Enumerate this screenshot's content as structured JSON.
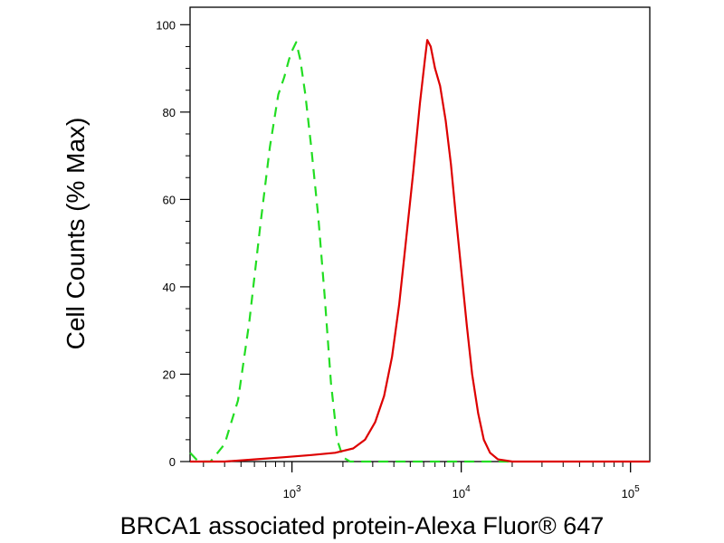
{
  "chart_data": {
    "type": "line",
    "xlabel": "BRCA1 associated protein-Alexa Fluor® 647",
    "ylabel": "Cell Counts (% Max)",
    "x_scale": "log",
    "xlim": [
      250,
      130000
    ],
    "ylim": [
      0,
      104
    ],
    "x_ticks": [
      {
        "value": 1000,
        "base": "10",
        "exp": "3"
      },
      {
        "value": 10000,
        "base": "10",
        "exp": "4"
      },
      {
        "value": 100000,
        "base": "10",
        "exp": "5"
      }
    ],
    "y_ticks": [
      0,
      20,
      40,
      60,
      80,
      100
    ],
    "grid": false,
    "legend": "none",
    "series": [
      {
        "color": "#22dd22",
        "dash": "dashed",
        "points": [
          [
            250,
            2
          ],
          [
            280,
            0
          ],
          [
            330,
            0
          ],
          [
            400,
            4
          ],
          [
            480,
            14
          ],
          [
            560,
            32
          ],
          [
            650,
            54
          ],
          [
            740,
            72
          ],
          [
            830,
            84
          ],
          [
            900,
            88
          ],
          [
            960,
            92
          ],
          [
            1000,
            94
          ],
          [
            1060,
            96
          ],
          [
            1120,
            92
          ],
          [
            1200,
            84
          ],
          [
            1300,
            72
          ],
          [
            1430,
            56
          ],
          [
            1560,
            38
          ],
          [
            1700,
            18
          ],
          [
            1850,
            5
          ],
          [
            2000,
            1
          ],
          [
            2200,
            0
          ],
          [
            3000,
            0
          ],
          [
            5000,
            0
          ],
          [
            8000,
            0
          ],
          [
            12000,
            0
          ],
          [
            20000,
            0
          ]
        ]
      },
      {
        "color": "#dd0000",
        "dash": "solid",
        "points": [
          [
            250,
            0
          ],
          [
            400,
            0
          ],
          [
            600,
            0.5
          ],
          [
            900,
            1
          ],
          [
            1300,
            1.5
          ],
          [
            1800,
            2
          ],
          [
            2300,
            3
          ],
          [
            2700,
            5
          ],
          [
            3100,
            9
          ],
          [
            3500,
            15
          ],
          [
            3900,
            24
          ],
          [
            4300,
            36
          ],
          [
            4700,
            50
          ],
          [
            5200,
            66
          ],
          [
            5700,
            82
          ],
          [
            6100,
            92
          ],
          [
            6300,
            96.5
          ],
          [
            6600,
            95
          ],
          [
            7000,
            90
          ],
          [
            7500,
            86
          ],
          [
            8100,
            78
          ],
          [
            8700,
            68
          ],
          [
            9300,
            56
          ],
          [
            10000,
            44
          ],
          [
            10800,
            31
          ],
          [
            11600,
            20
          ],
          [
            12600,
            11
          ],
          [
            13600,
            5
          ],
          [
            14800,
            2
          ],
          [
            16500,
            0.5
          ],
          [
            20000,
            0
          ],
          [
            50000,
            0
          ],
          [
            130000,
            0
          ]
        ]
      }
    ]
  }
}
